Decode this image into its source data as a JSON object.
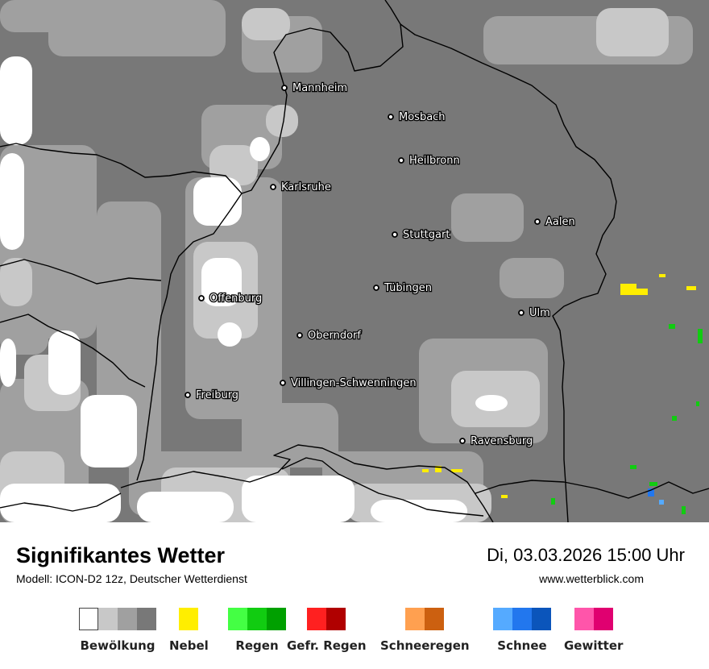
{
  "map": {
    "cities": [
      {
        "name": "Mannheim",
        "lon": 8.47,
        "lat": 49.49
      },
      {
        "name": "Mosbach",
        "lon": 9.15,
        "lat": 49.35
      },
      {
        "name": "Heilbronn",
        "lon": 9.22,
        "lat": 49.14
      },
      {
        "name": "Karlsruhe",
        "lon": 8.4,
        "lat": 49.01
      },
      {
        "name": "Aalen",
        "lon": 10.09,
        "lat": 48.84
      },
      {
        "name": "Stuttgart",
        "lon": 9.18,
        "lat": 48.78
      },
      {
        "name": "Tübingen",
        "lon": 9.06,
        "lat": 48.52
      },
      {
        "name": "Offenburg",
        "lon": 7.94,
        "lat": 48.47
      },
      {
        "name": "Ulm",
        "lon": 9.99,
        "lat": 48.4
      },
      {
        "name": "Oberndorf",
        "lon": 8.57,
        "lat": 48.29
      },
      {
        "name": "Villingen-Schwenningen",
        "lon": 8.46,
        "lat": 48.06
      },
      {
        "name": "Freiburg",
        "lon": 7.85,
        "lat": 48.0
      },
      {
        "name": "Ravensburg",
        "lon": 9.61,
        "lat": 47.78
      }
    ]
  },
  "title": "Signifikantes Wetter",
  "model": "Modell: ICON-D2 12z, Deutscher Wetterdienst",
  "datetime": "Di, 03.03.2026 15:00 Uhr",
  "website": "www.wetterblick.com",
  "legend": [
    {
      "label": "Bewölkung",
      "colors": [
        "#ffffff",
        "#c8c8c8",
        "#a0a0a0",
        "#787878"
      ]
    },
    {
      "label": "Nebel",
      "colors": [
        "#ffee00"
      ]
    },
    {
      "label": "Regen",
      "colors": [
        "#44ff44",
        "#11cc11",
        "#00a000"
      ]
    },
    {
      "label": "Gefr. Regen",
      "colors": [
        "#ff2020",
        "#b00000"
      ]
    },
    {
      "label": "Schneeregen",
      "colors": [
        "#ffa050",
        "#cc6010"
      ]
    },
    {
      "label": "Schnee",
      "colors": [
        "#55aaff",
        "#2277ee",
        "#0b55bb"
      ]
    },
    {
      "label": "Gewitter",
      "colors": [
        "#ff55aa",
        "#e00070"
      ]
    }
  ]
}
